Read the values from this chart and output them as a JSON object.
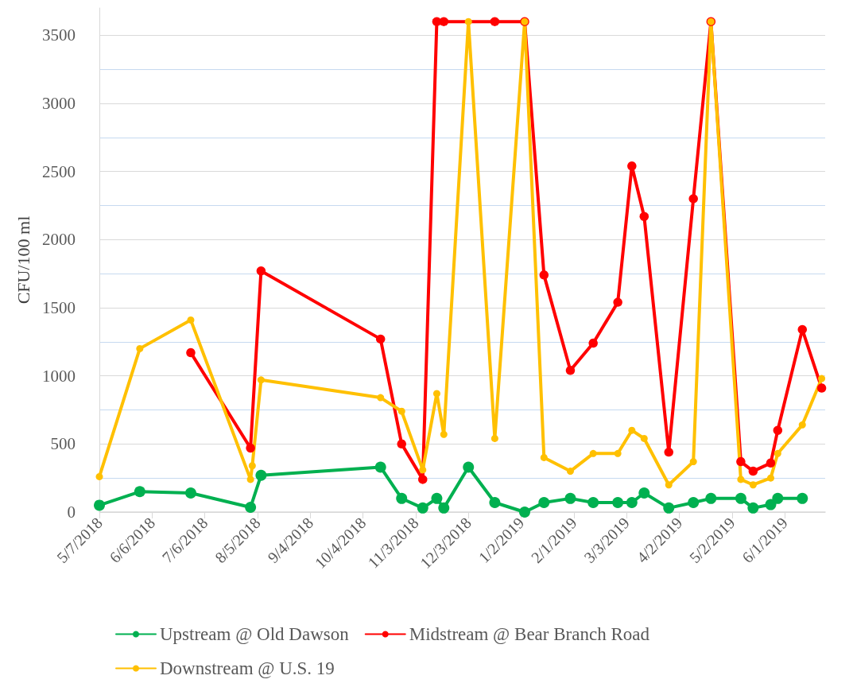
{
  "chart_data": {
    "type": "line",
    "ylabel": "CFU/100 ml",
    "marker": "circle",
    "line_style": "solid",
    "grid": "y",
    "legend": "bottom",
    "xlim": [
      "2018-05-07",
      "2019-06-24"
    ],
    "xticks": [
      {
        "value": "2018-05-07",
        "label": "5/7/2018"
      },
      {
        "value": "2018-06-06",
        "label": "6/6/2018"
      },
      {
        "value": "2018-07-06",
        "label": "7/6/2018"
      },
      {
        "value": "2018-08-05",
        "label": "8/5/2018"
      },
      {
        "value": "2018-09-04",
        "label": "9/4/2018"
      },
      {
        "value": "2018-10-04",
        "label": "10/4/2018"
      },
      {
        "value": "2018-11-03",
        "label": "11/3/2018"
      },
      {
        "value": "2018-12-03",
        "label": "12/3/2018"
      },
      {
        "value": "2019-01-02",
        "label": "1/2/2019"
      },
      {
        "value": "2019-02-01",
        "label": "2/1/2019"
      },
      {
        "value": "2019-03-03",
        "label": "3/3/2019"
      },
      {
        "value": "2019-04-02",
        "label": "4/2/2019"
      },
      {
        "value": "2019-05-02",
        "label": "5/2/2019"
      },
      {
        "value": "2019-06-01",
        "label": "6/1/2019"
      }
    ],
    "ylim": [
      0,
      3700
    ],
    "yticks": [
      0,
      {
        "value": 250,
        "label": null
      },
      500,
      {
        "value": 750,
        "label": null
      },
      1000,
      {
        "value": 1250,
        "label": null
      },
      1500,
      {
        "value": 1750,
        "label": null
      },
      2000,
      {
        "value": 2250,
        "label": null
      },
      2500,
      {
        "value": 2750,
        "label": null
      },
      3000,
      {
        "value": 3250,
        "label": null
      },
      3500
    ],
    "series": [
      {
        "name": "Upstream @ Old Dawson",
        "color": "#00b050",
        "x": [
          "2018-05-07",
          "2018-05-30",
          "2018-06-28",
          "2018-08-01",
          "2018-08-07",
          "2018-10-14",
          "2018-10-26",
          "2018-11-07",
          "2018-11-15",
          "2018-11-19",
          "2018-12-03",
          "2018-12-18",
          "2019-01-04",
          "2019-01-15",
          "2019-01-30",
          "2019-02-12",
          "2019-02-26",
          "2019-03-06",
          "2019-03-13",
          "2019-03-27",
          "2019-04-10",
          "2019-04-20",
          "2019-05-07",
          "2019-05-14",
          "2019-05-24",
          "2019-05-28",
          "2019-06-11"
        ],
        "values": [
          50,
          150,
          140,
          35,
          270,
          330,
          100,
          30,
          100,
          30,
          330,
          70,
          0,
          70,
          100,
          70,
          70,
          70,
          140,
          30,
          70,
          100,
          100,
          30,
          55,
          100,
          100
        ]
      },
      {
        "name": "Midstream @ Bear Branch Road",
        "color": "#ff0000",
        "x": [
          "2018-06-28",
          "2018-08-01",
          "2018-08-07",
          "2018-10-14",
          "2018-10-26",
          "2018-11-07",
          "2018-11-15",
          "2018-11-19",
          "2018-12-18",
          "2019-01-04",
          "2019-01-15",
          "2019-01-30",
          "2019-02-12",
          "2019-02-26",
          "2019-03-06",
          "2019-03-13",
          "2019-03-27",
          "2019-04-10",
          "2019-04-20",
          "2019-05-07",
          "2019-05-14",
          "2019-05-24",
          "2019-05-28",
          "2019-06-11",
          "2019-06-22"
        ],
        "values": [
          1170,
          470,
          1770,
          1270,
          500,
          240,
          3600,
          3600,
          3600,
          3600,
          1740,
          1040,
          1240,
          1540,
          2540,
          2170,
          440,
          2300,
          3600,
          370,
          300,
          360,
          600,
          1340,
          910
        ]
      },
      {
        "name": "Downstream @ U.S. 19",
        "color": "#ffc000",
        "x": [
          "2018-05-07",
          "2018-05-30",
          "2018-06-28",
          "2018-08-01",
          "2018-08-02",
          "2018-08-07",
          "2018-10-14",
          "2018-10-26",
          "2018-11-07",
          "2018-11-15",
          "2018-11-19",
          "2018-12-03",
          "2018-12-18",
          "2019-01-04",
          "2019-01-15",
          "2019-01-30",
          "2019-02-12",
          "2019-02-26",
          "2019-03-06",
          "2019-03-13",
          "2019-03-27",
          "2019-04-10",
          "2019-04-20",
          "2019-05-07",
          "2019-05-14",
          "2019-05-24",
          "2019-05-28",
          "2019-06-11",
          "2019-06-22"
        ],
        "values": [
          260,
          1200,
          1410,
          240,
          340,
          970,
          840,
          740,
          310,
          870,
          570,
          3600,
          540,
          3600,
          400,
          300,
          430,
          430,
          600,
          540,
          200,
          370,
          3600,
          240,
          200,
          250,
          430,
          640,
          980
        ]
      }
    ]
  }
}
